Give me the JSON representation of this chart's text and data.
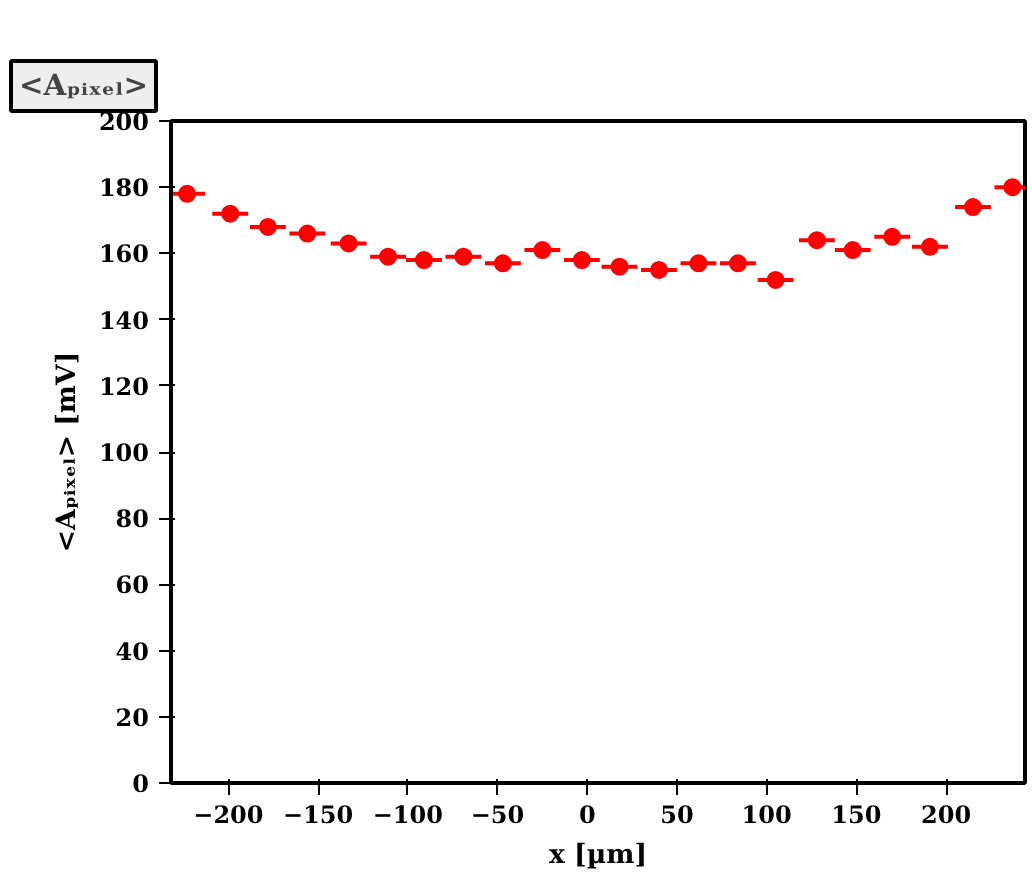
{
  "chart_data": {
    "type": "scatter",
    "title": "<Aₚᵢₓₑₗ>",
    "xlabel": "x [µm]",
    "ylabel": "<Aₚᵢₓₑₗ> [mV]",
    "x": [
      -223,
      -199,
      -178,
      -156,
      -133,
      -111,
      -91,
      -69,
      -47,
      -25,
      -3,
      18,
      40,
      62,
      84,
      105,
      128,
      148,
      170,
      191,
      215,
      237
    ],
    "series": [
      {
        "color": "#ff0000",
        "values": [
          178,
          172,
          168,
          166,
          163,
          159,
          158,
          159,
          157,
          161,
          158,
          156,
          155,
          157,
          157,
          152,
          164,
          161,
          165,
          162,
          174,
          180
        ],
        "errors": [
          1.5,
          1.5,
          1.5,
          1.5,
          1.5,
          1.5,
          1.5,
          1.5,
          1.5,
          1.5,
          1.5,
          1.5,
          1.5,
          1.5,
          1.5,
          1.5,
          1.5,
          1.5,
          1.5,
          1.5,
          1.5,
          1.5
        ],
        "xerrors": [
          10,
          10,
          10,
          10,
          10,
          10,
          10,
          10,
          10,
          10,
          10,
          10,
          10,
          10,
          10,
          10,
          10,
          10,
          10,
          10,
          10,
          10
        ]
      }
    ],
    "xlim": [
      -232,
      244
    ],
    "ylim": [
      0,
      200
    ],
    "xticks": [
      -200,
      -150,
      -100,
      -50,
      0,
      50,
      100,
      150,
      200
    ],
    "yticks": [
      0,
      20,
      40,
      60,
      80,
      100,
      120,
      140,
      160,
      180,
      200
    ],
    "grid": false,
    "marker": "circle"
  }
}
